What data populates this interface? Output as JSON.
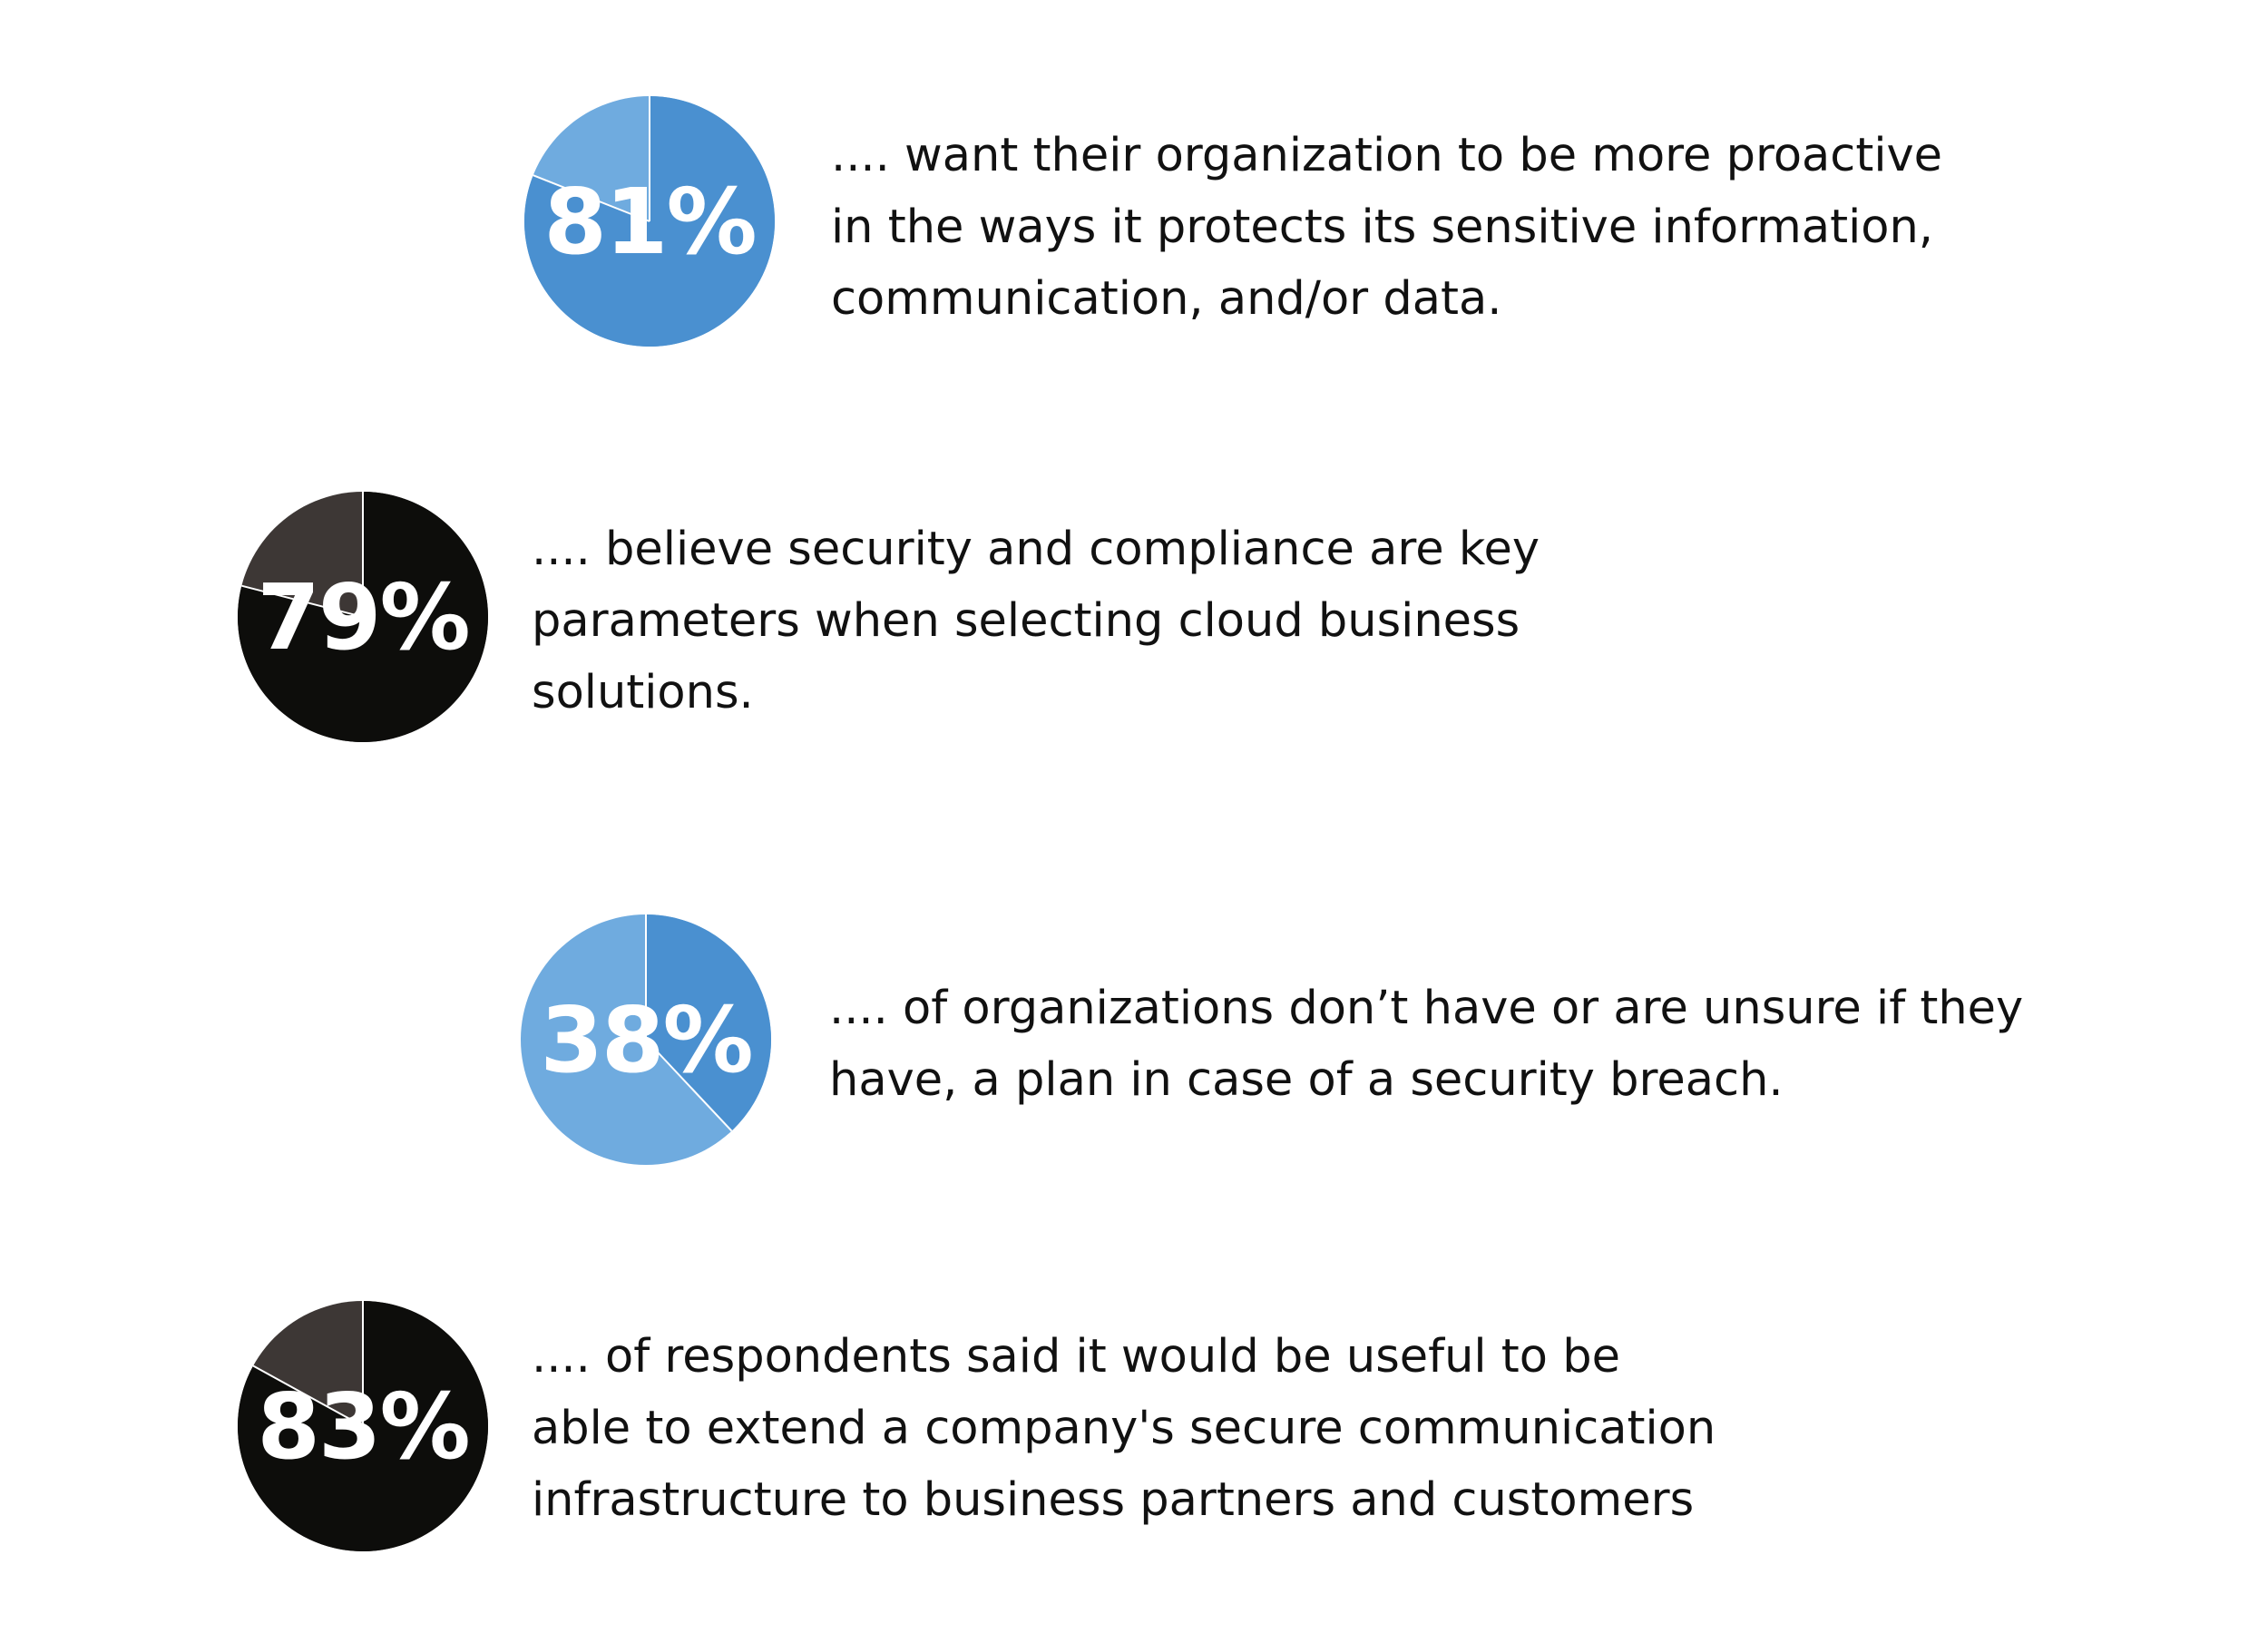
{
  "chart_data": [
    {
      "type": "pie",
      "value_percent": 81,
      "label": "81%",
      "text_lines": [
        ".... want their organization to be more proactive",
        "in the ways it protects its sensitive information,",
        "communication, and/or data."
      ],
      "colors": {
        "value": "#4a90d0",
        "remainder": "#6fabdf",
        "divider": "#ffffff",
        "label": "#ffffff"
      }
    },
    {
      "type": "pie",
      "value_percent": 79,
      "label": "79%",
      "text_lines": [
        ".... believe security and compliance are key",
        "parameters when selecting cloud business",
        "solutions."
      ],
      "colors": {
        "value": "#0d0d0b",
        "remainder": "#3d3735",
        "divider": "#ffffff",
        "label": "#ffffff"
      }
    },
    {
      "type": "pie",
      "value_percent": 38,
      "label": "38%",
      "text_lines": [
        ".... of organizations don’t have or are unsure if they",
        "have, a plan in case of a security breach."
      ],
      "colors": {
        "value": "#4a90d0",
        "remainder": "#6fabdf",
        "divider": "#ffffff",
        "label": "#ffffff"
      }
    },
    {
      "type": "pie",
      "value_percent": 83,
      "label": "83%",
      "text_lines": [
        ".... of respondents said it would be useful to be",
        "able to extend a company's secure communication",
        "infrastructure to business partners and customers"
      ],
      "colors": {
        "value": "#0d0d0b",
        "remainder": "#3d3735",
        "divider": "#ffffff",
        "label": "#ffffff"
      }
    }
  ]
}
